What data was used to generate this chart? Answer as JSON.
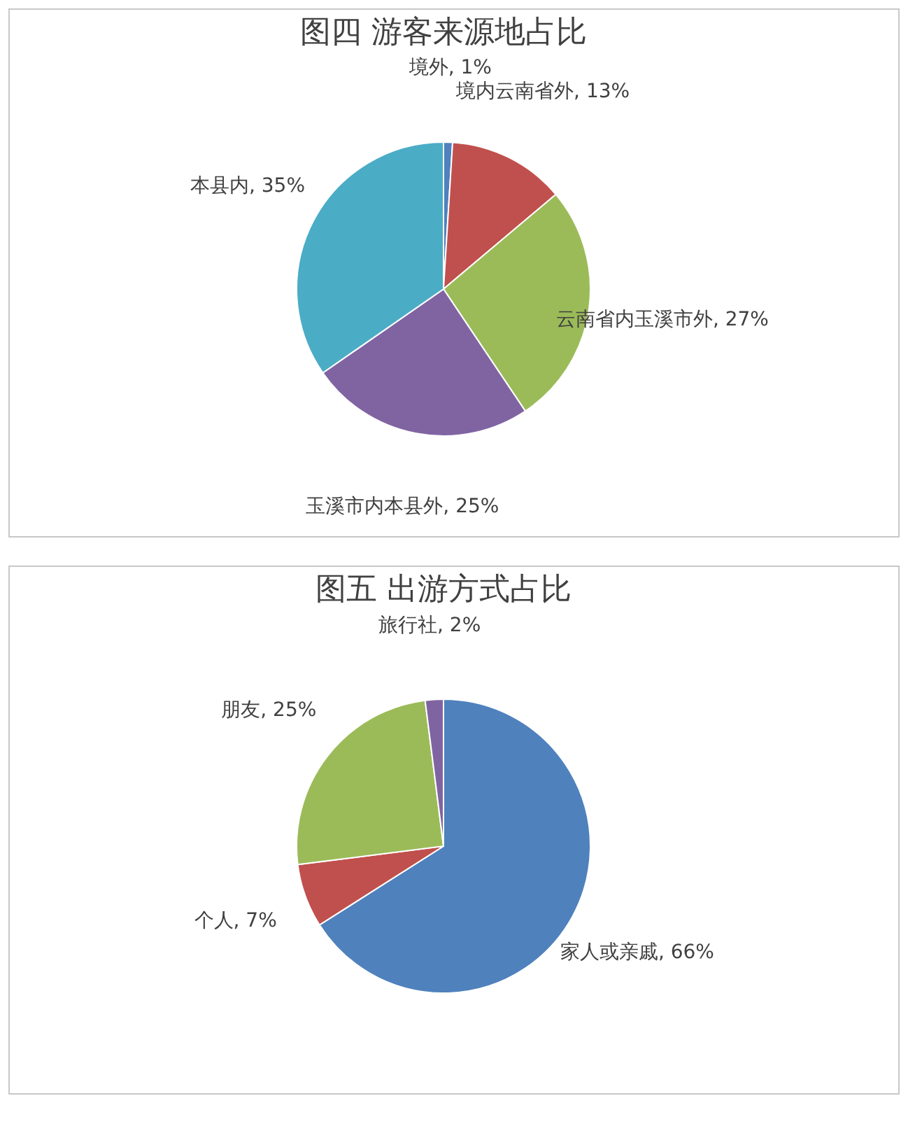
{
  "chart_data": [
    {
      "type": "pie",
      "title": "图四  游客来源地占比",
      "categories": [
        "境外",
        "境内云南省外",
        "云南省内玉溪市外",
        "玉溪市内本县外",
        "本县内"
      ],
      "values": [
        1,
        13,
        27,
        25,
        35
      ],
      "colors": [
        "#4f81bd",
        "#c0504d",
        "#9bbb59",
        "#8064a2",
        "#4bacc6"
      ],
      "value_labels": [
        "1%",
        "13%",
        "27%",
        "25%",
        "35%"
      ]
    },
    {
      "type": "pie",
      "title": "图五  出游方式占比",
      "categories": [
        "家人或亲戚",
        "个人",
        "朋友",
        "旅行社"
      ],
      "values": [
        66,
        7,
        25,
        2
      ],
      "colors": [
        "#4f81bd",
        "#c0504d",
        "#9bbb59",
        "#8064a2"
      ],
      "value_labels": [
        "66%",
        "7%",
        "25%",
        "2%"
      ]
    }
  ]
}
